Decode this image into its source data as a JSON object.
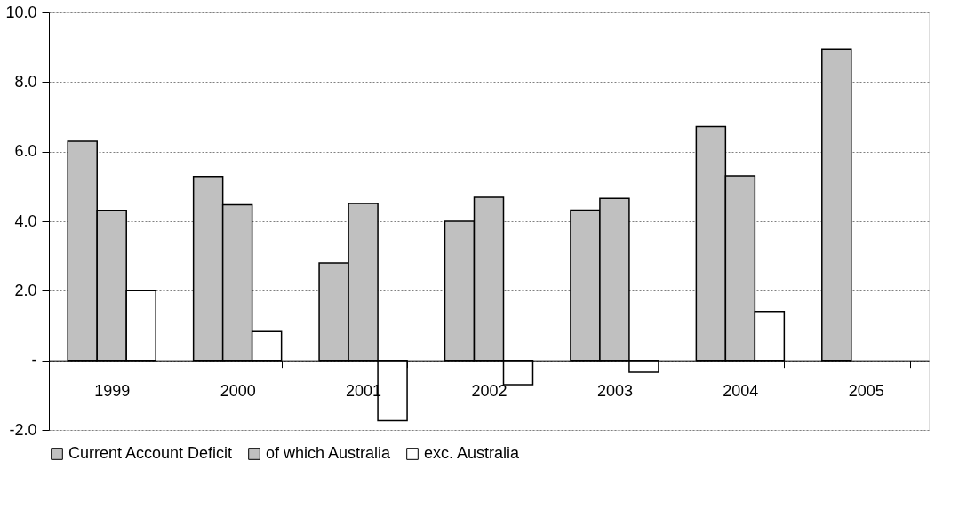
{
  "chart_data": {
    "type": "bar",
    "categories": [
      "1999",
      "2000",
      "2001",
      "2002",
      "2003",
      "2004",
      "2005"
    ],
    "series": [
      {
        "name": "Current Account Deficit",
        "color": "#c0c0c0",
        "values": [
          6.3,
          5.28,
          2.8,
          4.0,
          4.32,
          6.72,
          8.95
        ]
      },
      {
        "name": "of which Australia",
        "color": "#c0c0c0",
        "values": [
          4.31,
          4.47,
          4.51,
          4.69,
          4.66,
          5.3,
          null
        ]
      },
      {
        "name": "exc. Australia",
        "color": "#ffffff",
        "values": [
          2.0,
          0.83,
          -1.73,
          -0.7,
          -0.34,
          1.4,
          null
        ]
      }
    ],
    "ylim": [
      -2,
      10
    ],
    "yticks": [
      {
        "value": -2,
        "label": "-2.0"
      },
      {
        "value": 0,
        "label": "-"
      },
      {
        "value": 2,
        "label": "2.0"
      },
      {
        "value": 4,
        "label": "4.0"
      },
      {
        "value": 6,
        "label": "6.0"
      },
      {
        "value": 8,
        "label": "8.0"
      },
      {
        "value": 10,
        "label": "10.0"
      }
    ],
    "grid": "y",
    "legend": "bottom"
  }
}
